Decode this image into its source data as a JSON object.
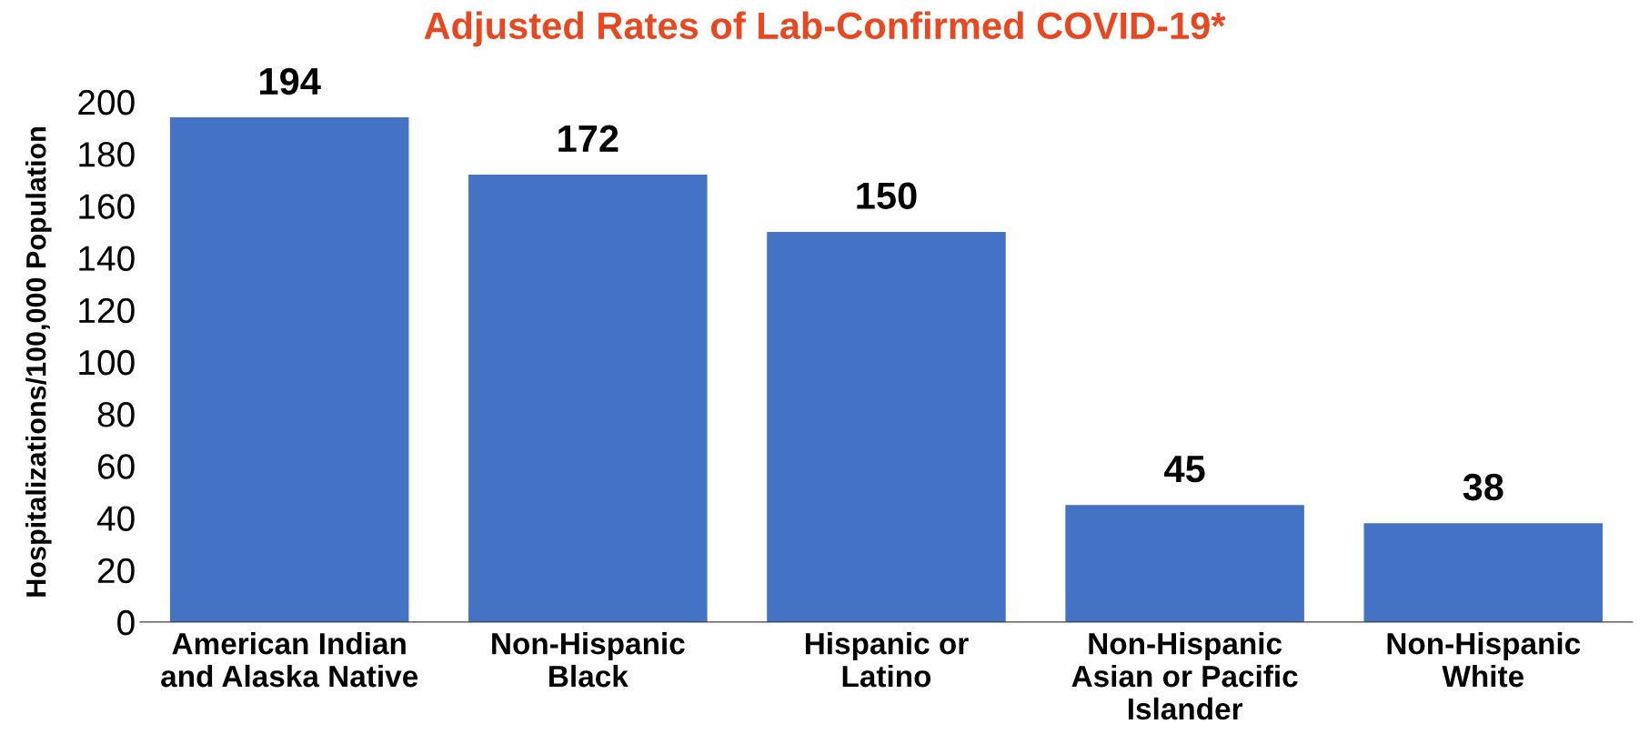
{
  "chart_data": {
    "type": "bar",
    "title": "Adjusted Rates of Lab-Confirmed COVID-19*",
    "ylabel": "Hospitalizations/100,000 Population",
    "categories": [
      "American Indian\nand Alaska Native",
      "Non-Hispanic\nBlack",
      "Hispanic or\nLatino",
      "Non-Hispanic\nAsian or Pacific\nIslander",
      "Non-Hispanic\nWhite"
    ],
    "values": [
      194,
      172,
      150,
      45,
      38
    ],
    "color": "#4472c4",
    "ylim": [
      0,
      200
    ],
    "yticks": [
      0,
      20,
      40,
      60,
      80,
      100,
      120,
      140,
      160,
      180,
      200
    ],
    "grid": false,
    "data_labels": true
  }
}
